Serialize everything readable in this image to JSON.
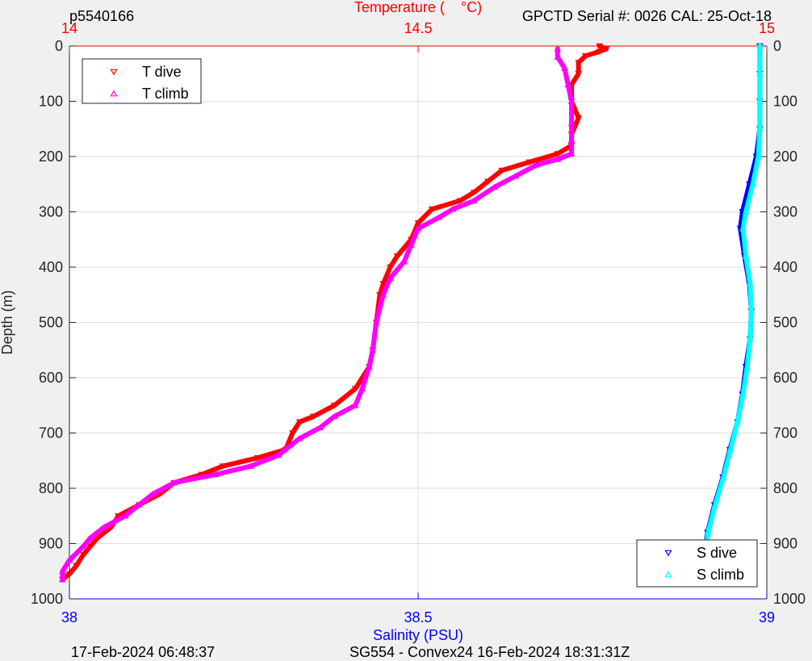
{
  "chart_data": {
    "type": "line",
    "header": {
      "left": "p5540166",
      "right": "GPCTD Serial #: 0026 CAL: 25-Oct-18"
    },
    "footer": {
      "left": "17-Feb-2024 06:48:37",
      "center": "SG554 - Convex24 16-Feb-2024 18:31:31Z"
    },
    "ylabel": "Depth (m)",
    "ylim": [
      0,
      1000
    ],
    "yticks": [
      0,
      100,
      200,
      300,
      400,
      500,
      600,
      700,
      800,
      900,
      1000
    ],
    "y_reversed": true,
    "x_top": {
      "label": "Temperature (    °C)",
      "lim": [
        14,
        15
      ],
      "ticks": [
        "14",
        "14.5",
        "15"
      ],
      "tick_values": [
        14,
        14.5,
        15
      ],
      "color": "#ff0000"
    },
    "x_bottom": {
      "label": "Salinity (PSU)",
      "lim": [
        38,
        39
      ],
      "ticks": [
        "38",
        "38.5",
        "39"
      ],
      "tick_values": [
        38,
        38.5,
        39
      ],
      "color": "#0000ff"
    },
    "grid": true,
    "legend_top_left": [
      {
        "name": "T dive",
        "color": "#ff0000",
        "marker": "down"
      },
      {
        "name": "T climb",
        "color": "#ff00ff",
        "marker": "up"
      }
    ],
    "legend_bottom_right": [
      {
        "name": "S dive",
        "color": "#0000ff",
        "marker": "down"
      },
      {
        "name": "S climb",
        "color": "#00ffff",
        "marker": "up"
      }
    ],
    "series": [
      {
        "name": "T dive",
        "axis": "x_top",
        "color": "#ff0000",
        "points": [
          [
            14.76,
            0
          ],
          [
            14.77,
            5
          ],
          [
            14.76,
            10
          ],
          [
            14.74,
            18
          ],
          [
            14.73,
            30
          ],
          [
            14.73,
            50
          ],
          [
            14.72,
            70
          ],
          [
            14.72,
            100
          ],
          [
            14.73,
            130
          ],
          [
            14.72,
            160
          ],
          [
            14.72,
            180
          ],
          [
            14.7,
            195
          ],
          [
            14.66,
            210
          ],
          [
            14.62,
            225
          ],
          [
            14.6,
            245
          ],
          [
            14.58,
            265
          ],
          [
            14.56,
            280
          ],
          [
            14.52,
            295
          ],
          [
            14.5,
            320
          ],
          [
            14.49,
            350
          ],
          [
            14.47,
            380
          ],
          [
            14.46,
            400
          ],
          [
            14.45,
            430
          ],
          [
            14.445,
            450
          ],
          [
            14.44,
            500
          ],
          [
            14.435,
            550
          ],
          [
            14.43,
            580
          ],
          [
            14.41,
            620
          ],
          [
            14.38,
            650
          ],
          [
            14.35,
            670
          ],
          [
            14.33,
            680
          ],
          [
            14.32,
            700
          ],
          [
            14.31,
            730
          ],
          [
            14.27,
            745
          ],
          [
            14.22,
            760
          ],
          [
            14.19,
            775
          ],
          [
            14.15,
            790
          ],
          [
            14.13,
            810
          ],
          [
            14.1,
            830
          ],
          [
            14.07,
            850
          ],
          [
            14.06,
            870
          ],
          [
            14.04,
            890
          ],
          [
            14.03,
            905
          ],
          [
            14.02,
            920
          ],
          [
            14.01,
            940
          ],
          [
            14.0,
            955
          ],
          [
            13.99,
            965
          ]
        ]
      },
      {
        "name": "T climb",
        "axis": "x_top",
        "color": "#ff00ff",
        "points": [
          [
            14.7,
            5
          ],
          [
            14.7,
            20
          ],
          [
            14.71,
            40
          ],
          [
            14.715,
            70
          ],
          [
            14.72,
            100
          ],
          [
            14.72,
            140
          ],
          [
            14.72,
            170
          ],
          [
            14.72,
            195
          ],
          [
            14.7,
            205
          ],
          [
            14.67,
            215
          ],
          [
            14.64,
            235
          ],
          [
            14.61,
            255
          ],
          [
            14.58,
            280
          ],
          [
            14.55,
            295
          ],
          [
            14.53,
            310
          ],
          [
            14.5,
            330
          ],
          [
            14.49,
            360
          ],
          [
            14.48,
            390
          ],
          [
            14.46,
            420
          ],
          [
            14.45,
            450
          ],
          [
            14.44,
            500
          ],
          [
            14.435,
            550
          ],
          [
            14.43,
            580
          ],
          [
            14.42,
            620
          ],
          [
            14.41,
            650
          ],
          [
            14.38,
            670
          ],
          [
            14.36,
            690
          ],
          [
            14.33,
            710
          ],
          [
            14.3,
            740
          ],
          [
            14.26,
            760
          ],
          [
            14.21,
            775
          ],
          [
            14.15,
            790
          ],
          [
            14.12,
            810
          ],
          [
            14.1,
            830
          ],
          [
            14.08,
            850
          ],
          [
            14.05,
            870
          ],
          [
            14.03,
            890
          ],
          [
            14.02,
            905
          ],
          [
            14.0,
            930
          ],
          [
            13.99,
            950
          ],
          [
            13.99,
            965
          ]
        ]
      },
      {
        "name": "S dive",
        "axis": "x_bottom",
        "color": "#0000ff",
        "points": [
          [
            38.99,
            0
          ],
          [
            38.99,
            50
          ],
          [
            38.99,
            100
          ],
          [
            38.99,
            150
          ],
          [
            38.985,
            200
          ],
          [
            38.975,
            250
          ],
          [
            38.965,
            300
          ],
          [
            38.962,
            330
          ],
          [
            38.968,
            380
          ],
          [
            38.975,
            430
          ],
          [
            38.978,
            480
          ],
          [
            38.976,
            530
          ],
          [
            38.97,
            580
          ],
          [
            38.965,
            630
          ],
          [
            38.958,
            680
          ],
          [
            38.947,
            730
          ],
          [
            38.937,
            780
          ],
          [
            38.925,
            830
          ],
          [
            38.915,
            880
          ],
          [
            38.91,
            930
          ],
          [
            38.908,
            965
          ]
        ]
      },
      {
        "name": "S climb",
        "axis": "x_bottom",
        "color": "#00ffff",
        "points": [
          [
            38.99,
            0
          ],
          [
            38.99,
            50
          ],
          [
            38.99,
            100
          ],
          [
            38.99,
            150
          ],
          [
            38.988,
            200
          ],
          [
            38.98,
            250
          ],
          [
            38.97,
            300
          ],
          [
            38.966,
            330
          ],
          [
            38.97,
            380
          ],
          [
            38.976,
            430
          ],
          [
            38.978,
            480
          ],
          [
            38.976,
            530
          ],
          [
            38.972,
            580
          ],
          [
            38.966,
            630
          ],
          [
            38.958,
            680
          ],
          [
            38.948,
            730
          ],
          [
            38.938,
            780
          ],
          [
            38.926,
            830
          ],
          [
            38.916,
            880
          ],
          [
            38.911,
            930
          ],
          [
            38.909,
            965
          ]
        ]
      }
    ]
  }
}
